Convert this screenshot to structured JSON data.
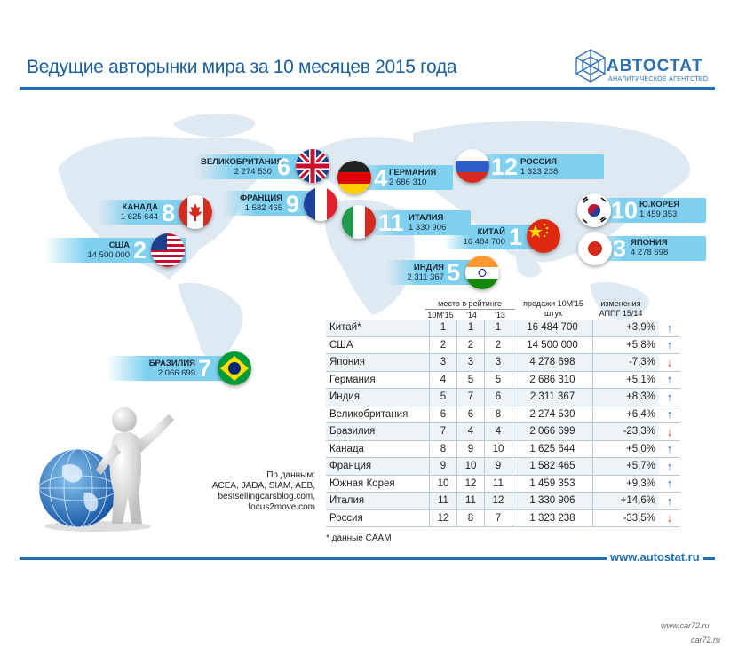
{
  "title": "Ведущие авторынки мира за 10 месяцев 2015 года",
  "logo": {
    "name": "АВТОСТАТ",
    "subtitle": "АНАЛИТИЧЕСКОЕ АГЕНТСТВО"
  },
  "map_labels": [
    {
      "key": "uk",
      "name": "ВЕЛИКОБРИТАНИЯ",
      "value": "2 274 530",
      "rank": "6"
    },
    {
      "key": "de",
      "name": "ГЕРМАНИЯ",
      "value": "2 686 310",
      "rank": "4"
    },
    {
      "key": "ru",
      "name": "РОССИЯ",
      "value": "1 323 238",
      "rank": "12"
    },
    {
      "key": "ca",
      "name": "КАНАДА",
      "value": "1 625 644",
      "rank": "8"
    },
    {
      "key": "fr",
      "name": "ФРАНЦИЯ",
      "value": "1 582 465",
      "rank": "9"
    },
    {
      "key": "it",
      "name": "ИТАЛИЯ",
      "value": "1 330 906",
      "rank": "11"
    },
    {
      "key": "kr",
      "name": "Ю.КОРЕЯ",
      "value": "1 459 353",
      "rank": "10"
    },
    {
      "key": "us",
      "name": "США",
      "value": "14 500 000",
      "rank": "2"
    },
    {
      "key": "cn",
      "name": "КИТАЙ",
      "value": "16 484 700",
      "rank": "1"
    },
    {
      "key": "jp",
      "name": "ЯПОНИЯ",
      "value": "4 278 698",
      "rank": "3"
    },
    {
      "key": "in",
      "name": "ИНДИЯ",
      "value": "2 311 367",
      "rank": "5"
    },
    {
      "key": "br",
      "name": "БРАЗИЛИЯ",
      "value": "2 066 699",
      "rank": "7"
    }
  ],
  "table": {
    "header_place": "место в рейтинге",
    "header_10m": "10М'15",
    "header_14": "'14",
    "header_13": "'13",
    "header_sales": "продажи 10М'15",
    "header_sales_unit": "штук",
    "header_change": "изменения",
    "header_change_sub": "АППГ 15/14",
    "rows": [
      {
        "country": "Китай*",
        "r15": "1",
        "r14": "1",
        "r13": "1",
        "sales": "16 484 700",
        "change": "+3,9%",
        "trend": "up"
      },
      {
        "country": "США",
        "r15": "2",
        "r14": "2",
        "r13": "2",
        "sales": "14 500 000",
        "change": "+5,8%",
        "trend": "up"
      },
      {
        "country": "Япония",
        "r15": "3",
        "r14": "3",
        "r13": "3",
        "sales": "4 278 698",
        "change": "-7,3%",
        "trend": "down"
      },
      {
        "country": "Германия",
        "r15": "4",
        "r14": "5",
        "r13": "5",
        "sales": "2 686 310",
        "change": "+5,1%",
        "trend": "up"
      },
      {
        "country": "Индия",
        "r15": "5",
        "r14": "7",
        "r13": "6",
        "sales": "2 311 367",
        "change": "+8,3%",
        "trend": "up"
      },
      {
        "country": "Великобритания",
        "r15": "6",
        "r14": "6",
        "r13": "8",
        "sales": "2 274 530",
        "change": "+6,4%",
        "trend": "up"
      },
      {
        "country": "Бразилия",
        "r15": "7",
        "r14": "4",
        "r13": "4",
        "sales": "2 066 699",
        "change": "-23,3%",
        "trend": "down"
      },
      {
        "country": "Канада",
        "r15": "8",
        "r14": "9",
        "r13": "10",
        "sales": "1 625 644",
        "change": "+5,0%",
        "trend": "up"
      },
      {
        "country": "Франция",
        "r15": "9",
        "r14": "10",
        "r13": "9",
        "sales": "1 582 465",
        "change": "+5,7%",
        "trend": "up"
      },
      {
        "country": "Южная Корея",
        "r15": "10",
        "r14": "12",
        "r13": "11",
        "sales": "1 459 353",
        "change": "+9,3%",
        "trend": "up"
      },
      {
        "country": "Италия",
        "r15": "11",
        "r14": "11",
        "r13": "12",
        "sales": "1 330 906",
        "change": "+14,6%",
        "trend": "up"
      },
      {
        "country": "Россия",
        "r15": "12",
        "r14": "8",
        "r13": "7",
        "sales": "1 323 238",
        "change": "-33,5%",
        "trend": "down"
      }
    ]
  },
  "sources": {
    "title": "По данным:",
    "line1": "ACEA, JADA, SIAM, AEB,",
    "line2": "bestsellingcarsblog.com,",
    "line3": "focus2move.com"
  },
  "footnote": "* данные CAAM",
  "site": "www.autostat.ru",
  "watermark1": "www.car72.ru",
  "watermark2": "car72.ru",
  "colors": {
    "accent": "#1e6fb5",
    "up": "#1e5fd0",
    "down": "#d9342b"
  }
}
